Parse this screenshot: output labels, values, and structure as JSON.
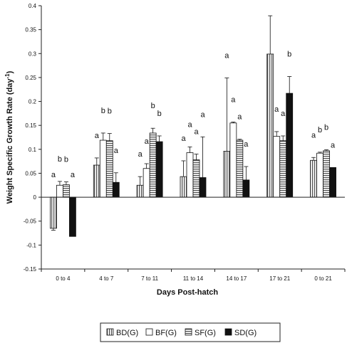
{
  "chart_data": {
    "type": "bar",
    "title": "",
    "xlabel": "Days Post-hatch",
    "ylabel": "Weight Specific Growth Rate (day",
    "ylabel_superscript": "-1",
    "ylabel_close": ")",
    "ylim": [
      -0.15,
      0.4
    ],
    "yticks": [
      -0.15,
      -0.1,
      -0.05,
      0,
      0.05,
      0.1,
      0.15,
      0.2,
      0.25,
      0.3,
      0.35,
      0.4
    ],
    "ytick_labels": [
      "-0.15",
      "-0.1",
      "-0.05",
      "0",
      "0.05",
      "0.1",
      "0.15",
      "0.2",
      "0.25",
      "0.3",
      "0.35",
      "0.4"
    ],
    "grid": false,
    "legend_position": "bottom",
    "categories": [
      "0 to 4",
      "4 to 7",
      "7 to 11",
      "11 to 14",
      "14 to 17",
      "17 to 21",
      "0 to 21"
    ],
    "series": [
      {
        "name": "BD(G)",
        "fill": "vertical-stripes",
        "values": [
          -0.065,
          0.067,
          0.025,
          0.043,
          0.096,
          0.299,
          0.077
        ],
        "errors": [
          0.004,
          0.015,
          0.018,
          0.033,
          0.153,
          0.08,
          0.006
        ],
        "letters": [
          "a",
          "a",
          "a",
          "a",
          "a",
          "b",
          "a"
        ]
      },
      {
        "name": "BF(G)",
        "fill": "white",
        "values": [
          0.025,
          0.119,
          0.06,
          0.093,
          0.155,
          0.127,
          0.092
        ],
        "errors": [
          0.008,
          0.015,
          0.01,
          0.012,
          0.002,
          0.01,
          0.002
        ],
        "letters": [
          "b",
          "b",
          "a",
          "a",
          "a",
          "a",
          "b"
        ]
      },
      {
        "name": "SF(G)",
        "fill": "horizontal-stripes",
        "values": [
          0.026,
          0.118,
          0.134,
          0.078,
          0.119,
          0.118,
          0.097
        ],
        "errors": [
          0.006,
          0.015,
          0.01,
          0.012,
          0.002,
          0.01,
          0.002
        ],
        "letters": [
          "b",
          "b",
          "b",
          "a",
          "a",
          "a",
          "b"
        ]
      },
      {
        "name": "SD(G)",
        "fill": "black",
        "values": [
          -0.082,
          0.031,
          0.116,
          0.041,
          0.036,
          0.217,
          0.062
        ],
        "errors": [
          0.0,
          0.02,
          0.012,
          0.085,
          0.028,
          0.035,
          0.0
        ],
        "letters": [
          "a",
          "a",
          "b",
          "a",
          "a",
          "b",
          "a"
        ]
      }
    ]
  }
}
